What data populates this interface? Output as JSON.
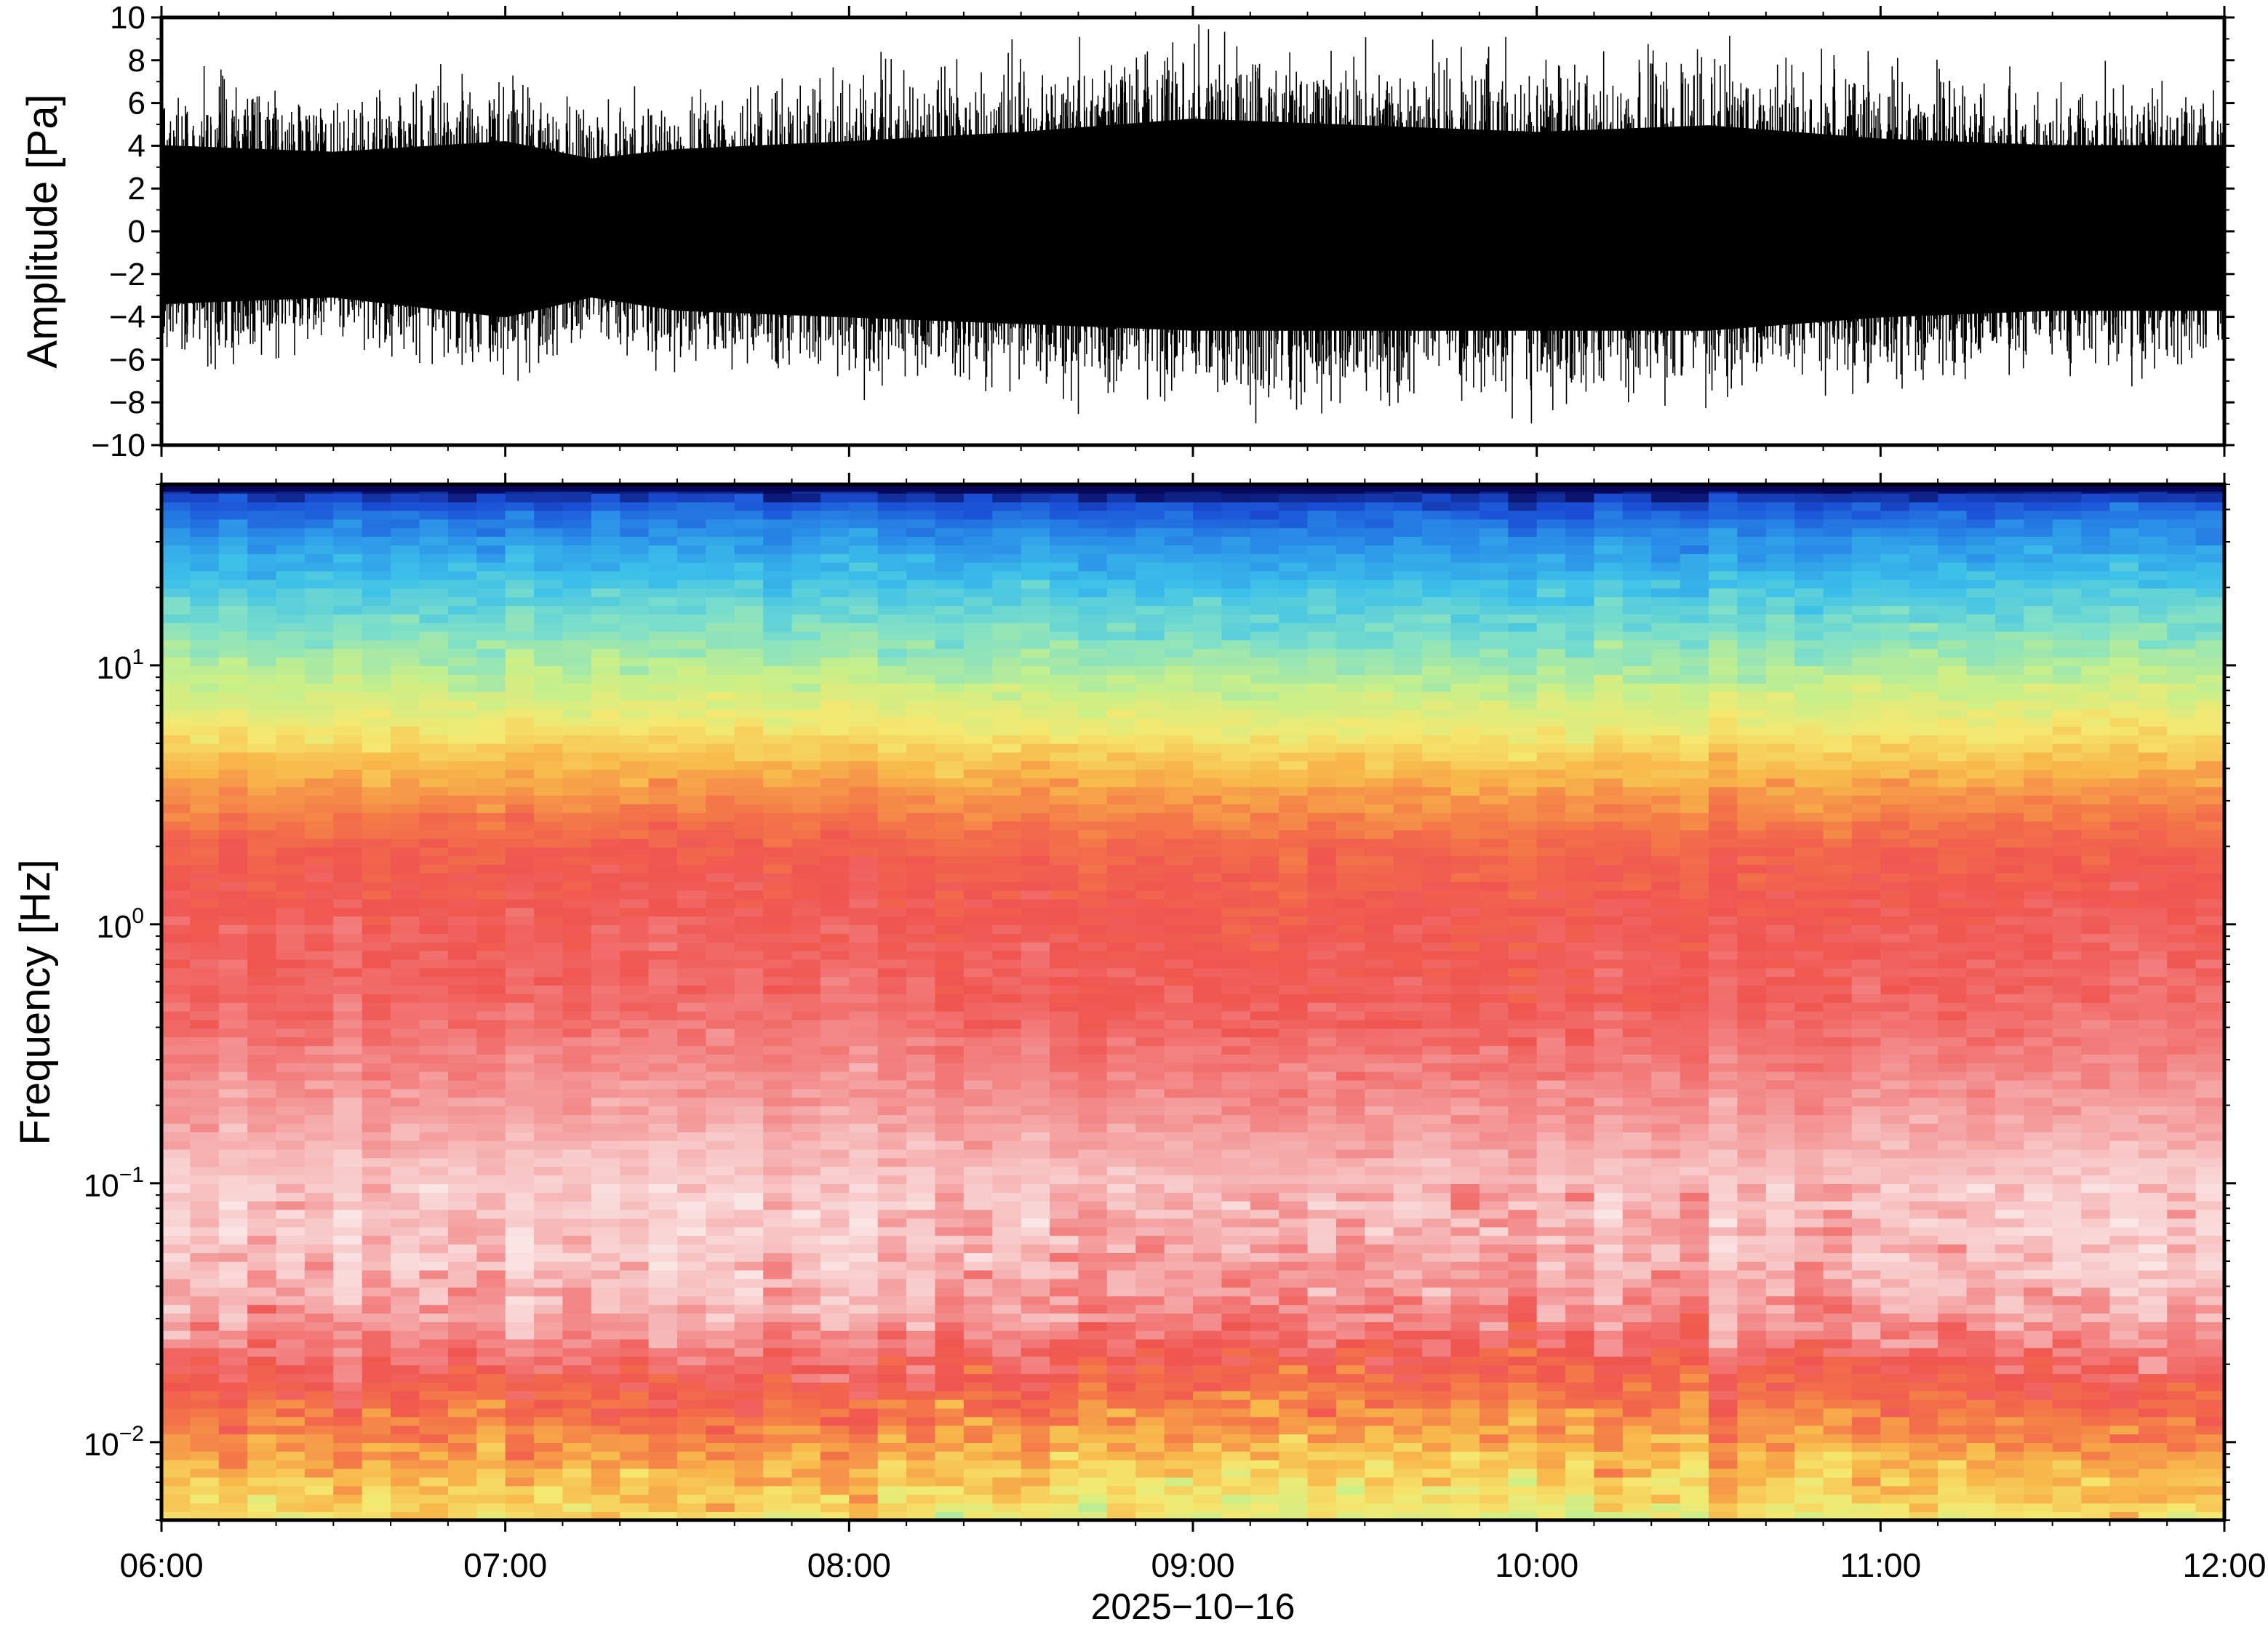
{
  "chart_data": [
    {
      "type": "line",
      "panel": "waveform",
      "ylabel": "Amplitude [Pa]",
      "ylim": [
        -10,
        10
      ],
      "yticks": [
        -10,
        -8,
        -6,
        -4,
        -2,
        0,
        2,
        4,
        6,
        8,
        10
      ],
      "ytick_labels": [
        "−10",
        "−8",
        "−6",
        "−4",
        "−2",
        "0",
        "2",
        "4",
        "6",
        "8",
        "10"
      ],
      "xlim": [
        "06:00",
        "12:00"
      ],
      "series": [
        {
          "color": "#000000",
          "x_hours": [
            6.0,
            6.5,
            7.0,
            7.25,
            7.5,
            8.0,
            8.5,
            9.0,
            9.5,
            10.0,
            10.5,
            11.0,
            11.5,
            12.0
          ],
          "envelope_upper": [
            6.5,
            6.0,
            6.8,
            5.5,
            6.2,
            6.8,
            7.5,
            8.5,
            8.0,
            7.5,
            8.0,
            7.0,
            6.5,
            6.5
          ],
          "envelope_lower": [
            -5.5,
            -5.0,
            -6.5,
            -5.0,
            -6.0,
            -6.5,
            -7.0,
            -7.5,
            -7.5,
            -7.5,
            -7.5,
            -6.5,
            -6.0,
            -6.0
          ]
        }
      ]
    },
    {
      "type": "heatmap",
      "panel": "spectrogram",
      "ylabel": "Frequency [Hz]",
      "yscale": "log",
      "ylim": [
        0.005,
        50
      ],
      "ytick_labels": [
        {
          "base": "10",
          "exp": "1",
          "value": 10
        },
        {
          "base": "10",
          "exp": "0",
          "value": 1
        },
        {
          "base": "10",
          "exp": "−1",
          "value": 0.1
        },
        {
          "base": "10",
          "exp": "−2",
          "value": 0.01
        }
      ],
      "xlim": [
        "06:00",
        "12:00"
      ],
      "xticks": [
        "06:00",
        "07:00",
        "08:00",
        "09:00",
        "10:00",
        "11:00",
        "12:00"
      ],
      "xlabel": "2025−10−16",
      "colorscale": [
        "#08085a",
        "#1a4fd6",
        "#2a8ee8",
        "#3cc0ea",
        "#7fe0c8",
        "#c8f08a",
        "#f5e870",
        "#f8b84a",
        "#f47a48",
        "#f05550",
        "#f38a8a",
        "#f8c8c8",
        "#fbe6e6"
      ],
      "level_profile": {
        "frequency_hz": [
          50,
          40,
          30,
          20,
          10,
          6,
          4,
          2,
          1,
          0.5,
          0.2,
          0.1,
          0.05,
          0.03,
          0.02,
          0.012,
          0.008,
          0.005
        ],
        "level_index": [
          0.0,
          1.3,
          2.2,
          3.2,
          4.6,
          5.8,
          7.0,
          8.6,
          9.1,
          9.3,
          10.2,
          11.0,
          10.8,
          10.2,
          9.1,
          7.9,
          6.9,
          5.9
        ]
      }
    }
  ]
}
